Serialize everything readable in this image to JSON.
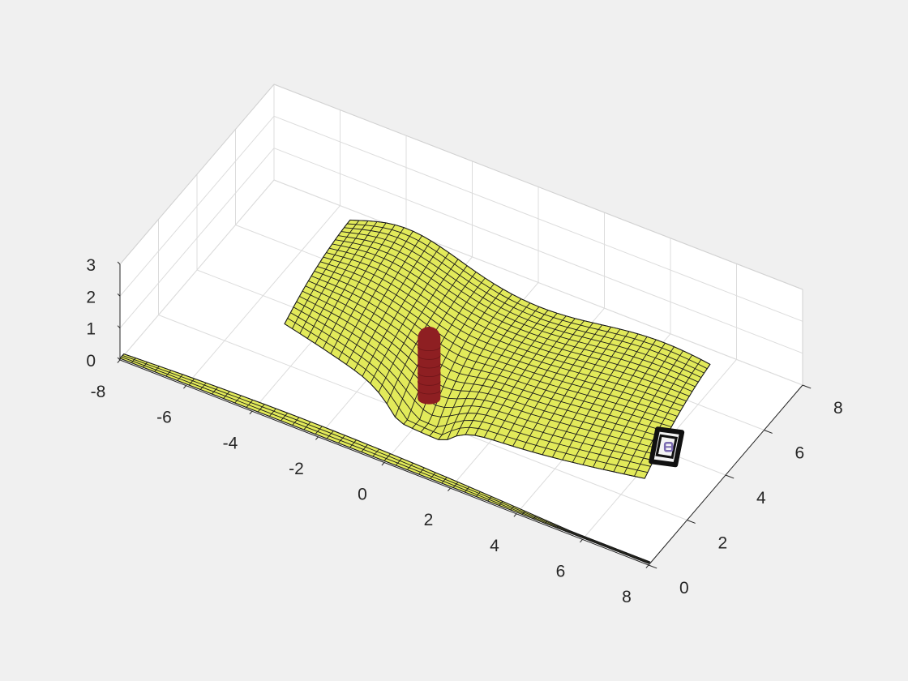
{
  "colors": {
    "background": "#f0f0f0",
    "axes_face": "#ffffff",
    "surface": "#e2ea5a",
    "mesh": "#1a1a1a",
    "obstacle": "#8e1f22",
    "target_frame": "#111111",
    "target_marker": "#7a6ab0"
  },
  "chart_data": {
    "type": "surface3d",
    "title": "",
    "xlabel": "",
    "ylabel": "",
    "zlabel": "",
    "xlim": [
      -8,
      8
    ],
    "ylim": [
      0,
      8
    ],
    "zlim": [
      0,
      3
    ],
    "x_ticks": [
      -8,
      -6,
      -4,
      -2,
      0,
      2,
      4,
      6,
      8
    ],
    "x_tick_labels": [
      "-8",
      "-6",
      "-4",
      "-2",
      "0",
      "2",
      "4",
      "6",
      "8"
    ],
    "y_ticks": [
      0,
      2,
      4,
      6,
      8
    ],
    "y_tick_labels": [
      "0",
      "2",
      "4",
      "6",
      "8"
    ],
    "z_ticks": [
      0,
      1,
      2,
      3
    ],
    "z_tick_labels": [
      "0",
      "1",
      "2",
      "3"
    ],
    "grid": true,
    "elements": [
      {
        "kind": "flat-sheet",
        "x_range": [
          -8,
          8
        ],
        "y_range": [
          0,
          0.35
        ],
        "z": 0.05
      },
      {
        "kind": "raised-sheet",
        "x_range": [
          -4.3,
          6.6
        ],
        "y_range": [
          2.2,
          5.6
        ],
        "z": 1.7
      },
      {
        "kind": "cylinder",
        "x": -0.1,
        "y": 2.5,
        "z_range": [
          0.2,
          1.0
        ]
      },
      {
        "kind": "box-marker",
        "x": 6.9,
        "y": 4.0,
        "z": 1.0
      }
    ]
  }
}
